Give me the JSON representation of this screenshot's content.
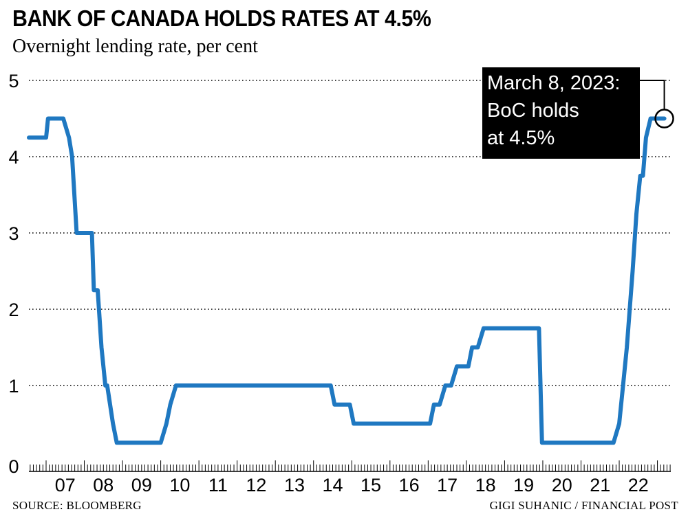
{
  "chart_data": {
    "type": "line",
    "title": "BANK OF CANADA HOLDS RATES AT 4.5%",
    "subtitle": "Overnight lending rate, per cent",
    "source": "SOURCE: BLOOMBERG",
    "credit": "GIGI SUHANIC / FINANCIAL POST",
    "ylim": [
      0,
      5
    ],
    "yticks": [
      "0",
      "1",
      "2",
      "3",
      "4",
      "5"
    ],
    "xlim": [
      2006.55,
      2023.35
    ],
    "xticks": [
      "07",
      "08",
      "09",
      "10",
      "11",
      "12",
      "13",
      "14",
      "15",
      "16",
      "17",
      "18",
      "19",
      "20",
      "21",
      "22"
    ],
    "grid": "horizontal dotted",
    "line_color": "#1f78c1",
    "series": [
      {
        "x": [
          2006.55,
          2007.0,
          2007.05,
          2007.45,
          2007.6,
          2007.68,
          2007.8,
          2008.2,
          2008.25,
          2008.35,
          2008.45,
          2008.55,
          2008.6,
          2008.75,
          2008.85,
          2010.0,
          2010.15,
          2010.25,
          2010.4,
          2014.45,
          2014.55,
          2014.95,
          2015.05,
          2017.05,
          2017.15,
          2017.3,
          2017.45,
          2017.6,
          2017.75,
          2018.05,
          2018.15,
          2018.3,
          2018.45,
          2018.55,
          2019.9,
          2019.98,
          2021.85,
          2022.0,
          2022.1,
          2022.2,
          2022.35,
          2022.45,
          2022.55,
          2022.62,
          2022.7,
          2022.82,
          2022.95,
          2023.18
        ],
        "y": [
          4.25,
          4.25,
          4.5,
          4.5,
          4.25,
          4.0,
          3.0,
          3.0,
          2.25,
          2.25,
          1.5,
          1.0,
          1.0,
          0.5,
          0.25,
          0.25,
          0.5,
          0.75,
          1.0,
          1.0,
          0.75,
          0.75,
          0.5,
          0.5,
          0.75,
          0.75,
          1.0,
          1.0,
          1.25,
          1.25,
          1.5,
          1.5,
          1.75,
          1.75,
          1.75,
          0.25,
          0.25,
          0.5,
          1.0,
          1.5,
          2.5,
          3.25,
          3.75,
          3.75,
          4.25,
          4.5,
          4.5,
          4.5
        ]
      }
    ],
    "annotation": {
      "lines": [
        "March 8, 2023:",
        "BoC holds",
        "at 4.5%"
      ],
      "x": 2023.18,
      "y": 4.5
    }
  }
}
